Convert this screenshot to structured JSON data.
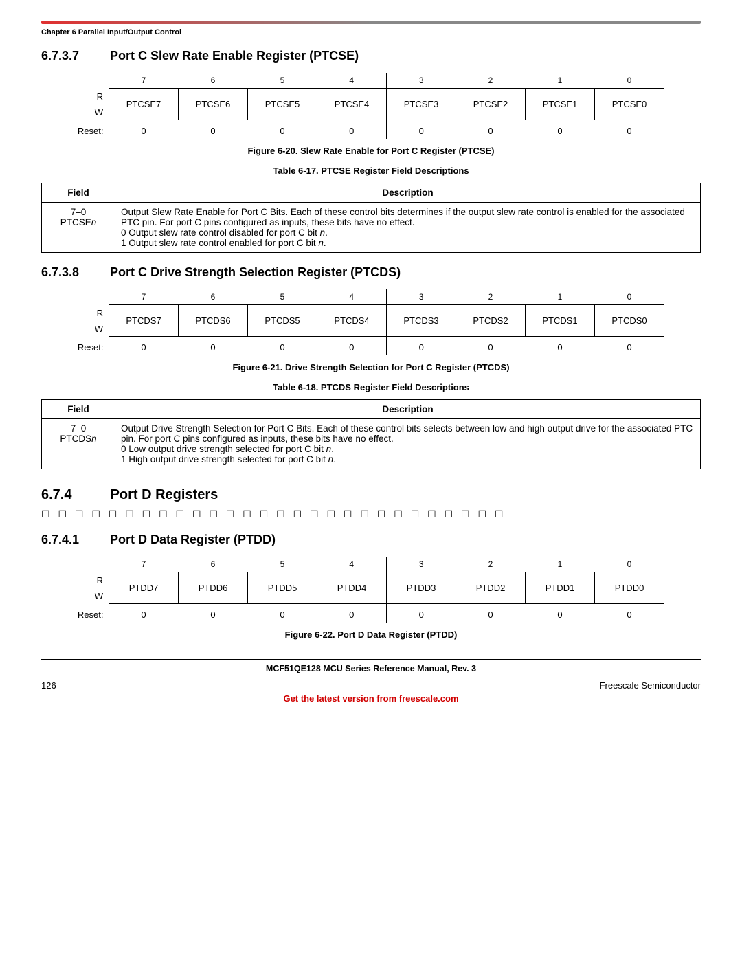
{
  "chapter_label": "Chapter 6 Parallel Input/Output Control",
  "sec1": {
    "num": "6.7.3.7",
    "title": "Port C Slew Rate Enable Register (PTCSE)"
  },
  "sec2": {
    "num": "6.7.3.8",
    "title": "Port C Drive Strength Selection Register (PTCDS)"
  },
  "sec3": {
    "num": "6.7.4",
    "title": "Port D Registers"
  },
  "sec4": {
    "num": "6.7.4.1",
    "title": "Port D Data Register (PTDD)"
  },
  "placeholder_boxes": "☐ ☐ ☐ ☐ ☐ ☐ ☐ ☐ ☐ ☐ ☐ ☐ ☐ ☐ ☐ ☐ ☐ ☐ ☐ ☐ ☐ ☐ ☐ ☐ ☐ ☐ ☐ ☐",
  "rw": {
    "R": "R",
    "W": "W",
    "Reset": "Reset:"
  },
  "bits": [
    "7",
    "6",
    "5",
    "4",
    "3",
    "2",
    "1",
    "0"
  ],
  "reg1": {
    "names": [
      "PTCSE7",
      "PTCSE6",
      "PTCSE5",
      "PTCSE4",
      "PTCSE3",
      "PTCSE2",
      "PTCSE1",
      "PTCSE0"
    ],
    "reset": [
      "0",
      "0",
      "0",
      "0",
      "0",
      "0",
      "0",
      "0"
    ],
    "fig": "Figure 6-20. Slew Rate Enable for Port C Register (PTCSE)",
    "tbl": "Table 6-17. PTCSE Register Field Descriptions",
    "field_hdr": "Field",
    "desc_hdr": "Description",
    "field": "7–0",
    "field_name_pre": "PTCSE",
    "field_name_suf": "n",
    "desc_l1": "Output Slew Rate Enable for Port C Bits. Each of these control bits determines if the output slew rate control is enabled for the associated PTC pin. For port C pins configured as inputs, these bits have no effect.",
    "desc_l2a": "0  Output slew rate control disabled for port C bit ",
    "desc_l2b": "n",
    "desc_l2c": ".",
    "desc_l3a": "1  Output slew rate control enabled for port C bit ",
    "desc_l3b": "n",
    "desc_l3c": "."
  },
  "reg2": {
    "names": [
      "PTCDS7",
      "PTCDS6",
      "PTCDS5",
      "PTCDS4",
      "PTCDS3",
      "PTCDS2",
      "PTCDS1",
      "PTCDS0"
    ],
    "reset": [
      "0",
      "0",
      "0",
      "0",
      "0",
      "0",
      "0",
      "0"
    ],
    "fig": "Figure 6-21. Drive Strength Selection for Port C Register (PTCDS)",
    "tbl": "Table 6-18. PTCDS Register Field Descriptions",
    "field_hdr": "Field",
    "desc_hdr": "Description",
    "field": "7–0",
    "field_name_pre": "PTCDS",
    "field_name_suf": "n",
    "desc_l1": "Output Drive Strength Selection for Port C Bits. Each of these control bits selects between low and high output drive for the associated PTC pin. For port C pins configured as inputs, these bits have no effect.",
    "desc_l2a": "0  Low output drive strength selected for port C bit ",
    "desc_l2b": "n",
    "desc_l2c": ".",
    "desc_l3a": "1  High output drive strength selected for port C bit ",
    "desc_l3b": "n",
    "desc_l3c": "."
  },
  "reg3": {
    "names": [
      "PTDD7",
      "PTDD6",
      "PTDD5",
      "PTDD4",
      "PTDD3",
      "PTDD2",
      "PTDD1",
      "PTDD0"
    ],
    "reset": [
      "0",
      "0",
      "0",
      "0",
      "0",
      "0",
      "0",
      "0"
    ],
    "fig": "Figure 6-22. Port D Data Register (PTDD)"
  },
  "footer": {
    "title": "MCF51QE128 MCU Series Reference Manual, Rev. 3",
    "page": "126",
    "company": "Freescale Semiconductor",
    "link": "Get the latest version from freescale.com"
  },
  "colors": {
    "link_red": "#d00000",
    "rule_red": "#e03030",
    "rule_gray": "#888888"
  }
}
